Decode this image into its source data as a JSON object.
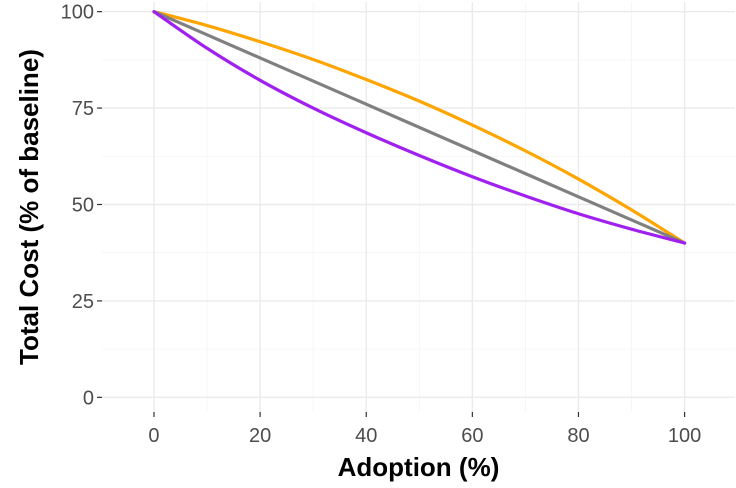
{
  "chart_data": {
    "type": "line",
    "title": "",
    "xlabel": "Adoption (%)",
    "ylabel": "Total Cost (% of baseline)",
    "xlim": [
      0,
      100
    ],
    "ylim": [
      0,
      100
    ],
    "x_ticks": [
      0,
      20,
      40,
      60,
      80,
      100
    ],
    "y_ticks": [
      0,
      25,
      50,
      75,
      100
    ],
    "grid": true,
    "legend": "none",
    "x": [
      0,
      10,
      20,
      30,
      40,
      50,
      60,
      70,
      80,
      90,
      100
    ],
    "series": [
      {
        "color": "#FFA500",
        "values": [
          100,
          96.4,
          92.2,
          87.6,
          82.4,
          76.8,
          70.6,
          63.9,
          56.6,
          48.6,
          40
        ]
      },
      {
        "color": "#808080",
        "values": [
          100,
          94,
          88,
          82,
          76,
          70,
          64,
          58,
          52,
          46,
          40
        ]
      },
      {
        "color": "#A020F0",
        "values": [
          100,
          90.5,
          82.2,
          75,
          68.6,
          62.7,
          57.2,
          52.2,
          47.6,
          43.6,
          40
        ]
      }
    ]
  }
}
